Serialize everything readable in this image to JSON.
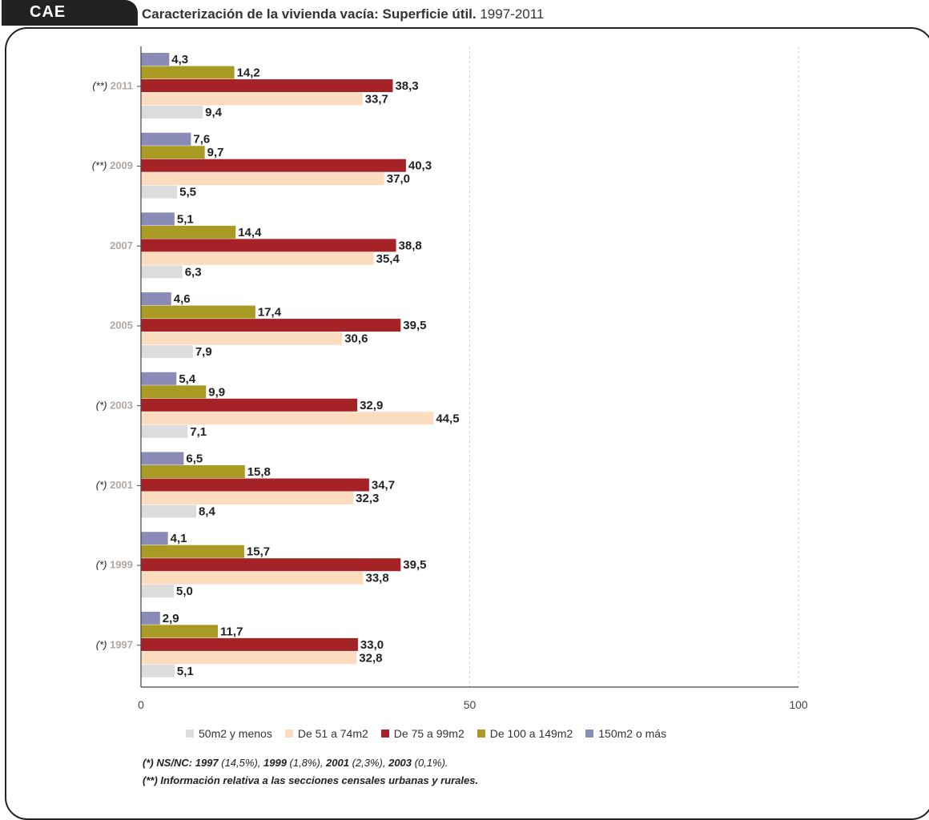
{
  "header": {
    "badge": "CAE",
    "title_bold": "Caracterización de la vivienda vacía: Superficie útil.",
    "title_range": " 1997-2011"
  },
  "chart_data": {
    "type": "bar",
    "orientation": "horizontal",
    "categories": [
      "(**) 2011",
      "(**) 2009",
      "2007",
      "2005",
      "(*) 2003",
      "(*) 2001",
      "(*) 1999",
      "(*) 1997"
    ],
    "series": [
      {
        "name": "150m2 o más",
        "color": "#8b8bb8",
        "values": [
          4.3,
          7.6,
          5.1,
          4.6,
          5.4,
          6.5,
          4.1,
          2.9
        ]
      },
      {
        "name": "De 100 a 149m2",
        "color": "#a89a22",
        "values": [
          14.2,
          9.7,
          14.4,
          17.4,
          9.9,
          15.8,
          15.7,
          11.7
        ]
      },
      {
        "name": "De 75 a 99m2",
        "color": "#a52226",
        "values": [
          38.3,
          40.3,
          38.8,
          39.5,
          32.9,
          34.7,
          39.5,
          33.0
        ]
      },
      {
        "name": "De 51 a 74m2",
        "color": "#fcdcbf",
        "values": [
          33.7,
          37.0,
          35.4,
          30.6,
          44.5,
          32.3,
          33.8,
          32.8
        ]
      },
      {
        "name": "50m2 y menos",
        "color": "#dcdcdc",
        "values": [
          9.4,
          5.5,
          6.3,
          7.9,
          7.1,
          8.4,
          5.0,
          5.1
        ]
      }
    ],
    "value_labels": [
      [
        "4,3",
        "14,2",
        "38,3",
        "33,7",
        "9,4"
      ],
      [
        "7,6",
        "9,7",
        "40,3",
        "37,0",
        "5,5"
      ],
      [
        "5,1",
        "14,4",
        "38,8",
        "35,4",
        "6,3"
      ],
      [
        "4,6",
        "17,4",
        "39,5",
        "30,6",
        "7,9"
      ],
      [
        "5,4",
        "9,9",
        "32,9",
        "44,5",
        "7,1"
      ],
      [
        "6,5",
        "15,8",
        "34,7",
        "32,3",
        "8,4"
      ],
      [
        "4,1",
        "15,7",
        "39,5",
        "33,8",
        "5,0"
      ],
      [
        "2,9",
        "11,7",
        "33,0",
        "32,8",
        "5,1"
      ]
    ],
    "category_prefix": [
      "(**)",
      "(**)",
      "",
      "",
      "(*)",
      "(*)",
      "(*)",
      "(*)"
    ],
    "category_year": [
      "2011",
      "2009",
      "2007",
      "2005",
      "2003",
      "2001",
      "1999",
      "1997"
    ],
    "xticks": [
      "0",
      "50",
      "100"
    ],
    "xtick_values": [
      0,
      50,
      100
    ],
    "xlim": [
      0,
      100
    ],
    "grid": "dashed vertical at 50 and 100",
    "legend_order": [
      "50m2 y menos",
      "De 51 a 74m2",
      "De 75 a 99m2",
      "De 100 a 149m2",
      "150m2 o más"
    ],
    "legend_position": "bottom"
  },
  "notes": {
    "n1_prefix": "(*) NS/NC: ",
    "n1_y1": "1997",
    "n1_v1": " (14,5%), ",
    "n1_y2": "1999",
    "n1_v2": " (1,8%), ",
    "n1_y3": "2001",
    "n1_v3": " (2,3%), ",
    "n1_y4": "2003",
    "n1_v4": " (0,1%).",
    "n2": "(**) Información relativa a las secciones censales urbanas y rurales."
  },
  "legend_colors": {
    "50m2 y menos": "#dcdcdc",
    "De 51 a 74m2": "#fcdcbf",
    "De 75 a 99m2": "#a52226",
    "De 100 a 149m2": "#a89a22",
    "150m2 o más": "#8b8bb8"
  }
}
